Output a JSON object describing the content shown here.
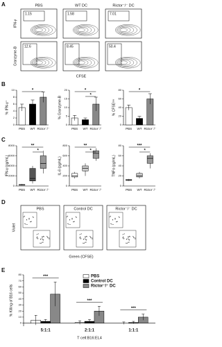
{
  "panel_a": {
    "letter": "A",
    "columns": [
      "PBS",
      "WT DC",
      "Rictor⁻/⁻ DC"
    ],
    "rows": [
      "IFN-γ",
      "Granzyme-B"
    ],
    "gates": [
      [
        1.15,
        1.58,
        7.01
      ],
      [
        12.6,
        8.45,
        50.4
      ]
    ],
    "xlabel": "CFSE"
  },
  "panel_d": {
    "letter": "D",
    "columns": [
      "PBS",
      "Control DC",
      "Rictor⁻/⁻ DC"
    ],
    "ylabel": "Violet",
    "xlabel": "Green (CFSE)"
  },
  "letters": [
    "B",
    "C",
    "E"
  ],
  "chart_data": [
    {
      "type": "bar",
      "ylabel": "% IFN-γ⁺",
      "categories": [
        "PBS",
        "WT",
        "Rictor⁻/⁻"
      ],
      "values": [
        5,
        6,
        8
      ],
      "errors": [
        1,
        1.2,
        1.5
      ],
      "colors": [
        "#ffffff",
        "#000000",
        "#888888"
      ],
      "ylim": [
        0,
        10
      ],
      "yticks": [
        0,
        2,
        4,
        6,
        8,
        10
      ],
      "annotations": [
        "*"
      ]
    },
    {
      "type": "bar",
      "ylabel": "% Granzyme-B",
      "categories": [
        "PBS",
        "WT",
        "Rictor⁻/⁻"
      ],
      "values": [
        4,
        3,
        12
      ],
      "errors": [
        1.5,
        1,
        4
      ],
      "colors": [
        "#ffffff",
        "#000000",
        "#888888"
      ],
      "ylim": [
        0,
        20
      ],
      "yticks": [
        0,
        5,
        10,
        15,
        20
      ],
      "annotations": [
        "*",
        "*"
      ]
    },
    {
      "type": "bar",
      "ylabel": "% CFSEˡᵒʷ",
      "categories": [
        "PBS",
        "WT",
        "Rictor⁻/⁻"
      ],
      "values": [
        40,
        15,
        60
      ],
      "errors": [
        6,
        5,
        12
      ],
      "colors": [
        "#ffffff",
        "#000000",
        "#888888"
      ],
      "ylim": [
        0,
        80
      ],
      "yticks": [
        0,
        20,
        40,
        60,
        80
      ],
      "annotations": [
        "*"
      ]
    },
    {
      "type": "box",
      "ylabel": "IFN-γ (pg/mL)",
      "categories": [
        "PBS",
        "WT",
        "Rictor⁻/⁻"
      ],
      "values": [
        {
          "min": 100,
          "q1": 150,
          "median": 200,
          "q3": 300,
          "max": 400
        },
        {
          "min": 500,
          "q1": 1000,
          "median": 1500,
          "q3": 3500,
          "max": 4000
        },
        {
          "min": 2500,
          "q1": 3500,
          "median": 4500,
          "q3": 6000,
          "max": 7000
        }
      ],
      "colors": [
        "#ffffff",
        "#555555",
        "#999999"
      ],
      "ylim": [
        0,
        8000
      ],
      "yticks": [
        0,
        2000,
        4000,
        6000,
        8000
      ],
      "annotations": [
        "**",
        "*"
      ]
    },
    {
      "type": "box",
      "ylabel": "IL-6 (pg/mL)",
      "categories": [
        "PBS",
        "WT",
        "Rictor⁻/⁻"
      ],
      "values": [
        {
          "min": 150,
          "q1": 180,
          "median": 200,
          "q3": 250,
          "max": 280
        },
        {
          "min": 200,
          "q1": 300,
          "median": 350,
          "q3": 400,
          "max": 450
        },
        {
          "min": 500,
          "q1": 550,
          "median": 650,
          "q3": 700,
          "max": 750
        }
      ],
      "colors": [
        "#ffffff",
        "#cccccc",
        "#999999"
      ],
      "ylim": [
        0,
        800
      ],
      "yticks": [
        0,
        200,
        400,
        600,
        800
      ],
      "annotations": [
        "**",
        "*"
      ]
    },
    {
      "type": "box",
      "ylabel": "TNFα (pg/mL)",
      "categories": [
        "PBS",
        "WT",
        "Rictor⁻/⁻"
      ],
      "values": [
        {
          "min": 10,
          "q1": 11,
          "median": 12,
          "q3": 13,
          "max": 14
        },
        {
          "min": 15,
          "q1": 18,
          "median": 20,
          "q3": 25,
          "max": 28
        },
        {
          "min": 35,
          "q1": 45,
          "median": 55,
          "q3": 60,
          "max": 65
        }
      ],
      "colors": [
        "#ffffff",
        "#cccccc",
        "#999999"
      ],
      "ylim": [
        0,
        80
      ],
      "yticks": [
        0,
        20,
        40,
        60,
        80
      ],
      "annotations": [
        "***",
        "*"
      ]
    },
    {
      "type": "bar",
      "ylabel": "% Killing of B16 cells",
      "xlabel": "T cell:B16:EL4",
      "categories": [
        "5:1:1",
        "2:1:1",
        "1:1:1"
      ],
      "series": [
        {
          "name": "PBS",
          "color": "#ffffff",
          "values": [
            5,
            1,
            0
          ],
          "errors": [
            8,
            3,
            2
          ]
        },
        {
          "name": "Control DC",
          "color": "#000000",
          "values": [
            3,
            3,
            1
          ],
          "errors": [
            3,
            3,
            2
          ]
        },
        {
          "name": "Rictor⁻/⁻ DC",
          "color": "#888888",
          "values": [
            48,
            20,
            10
          ],
          "errors": [
            20,
            8,
            5
          ]
        }
      ],
      "ylim": [
        -5,
        80
      ],
      "yticks": [
        0,
        10,
        20,
        30,
        40,
        50,
        60,
        70,
        80
      ],
      "annotations": [
        "***",
        "***",
        "***"
      ]
    }
  ]
}
